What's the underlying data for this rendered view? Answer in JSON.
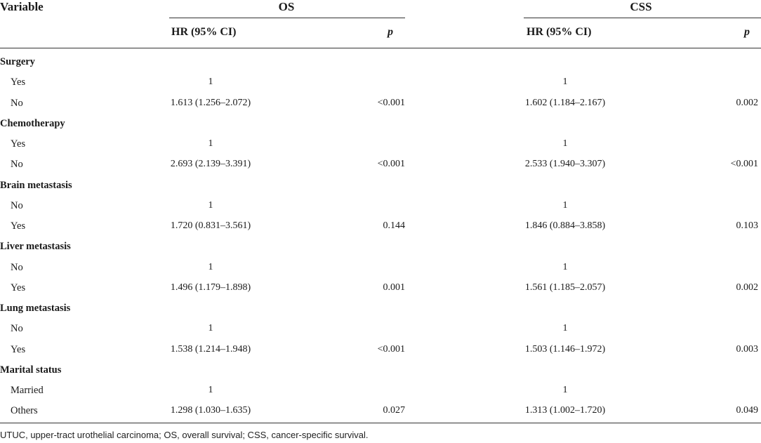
{
  "header": {
    "variable": "Variable",
    "groups": [
      "OS",
      "CSS"
    ],
    "subcolumns": {
      "hr": "HR (95% CI)",
      "p": "p"
    }
  },
  "rows": [
    {
      "label": "Surgery",
      "group": true
    },
    {
      "label": "Yes",
      "os_hr": "1",
      "os_p": "",
      "css_hr": "1",
      "css_p": ""
    },
    {
      "label": "No",
      "os_hr": "1.613 (1.256–2.072)",
      "os_p": "<0.001",
      "css_hr": "1.602 (1.184–2.167)",
      "css_p": "0.002"
    },
    {
      "label": "Chemotherapy",
      "group": true
    },
    {
      "label": "Yes",
      "os_hr": "1",
      "os_p": "",
      "css_hr": "1",
      "css_p": ""
    },
    {
      "label": "No",
      "os_hr": "2.693 (2.139–3.391)",
      "os_p": "<0.001",
      "css_hr": "2.533 (1.940–3.307)",
      "css_p": "<0.001"
    },
    {
      "label": "Brain metastasis",
      "group": true
    },
    {
      "label": "No",
      "os_hr": "1",
      "os_p": "",
      "css_hr": "1",
      "css_p": ""
    },
    {
      "label": "Yes",
      "os_hr": "1.720 (0.831–3.561)",
      "os_p": "0.144",
      "css_hr": "1.846 (0.884–3.858)",
      "css_p": "0.103"
    },
    {
      "label": "Liver metastasis",
      "group": true
    },
    {
      "label": "No",
      "os_hr": "1",
      "os_p": "",
      "css_hr": "1",
      "css_p": ""
    },
    {
      "label": "Yes",
      "os_hr": "1.496 (1.179–1.898)",
      "os_p": "0.001",
      "css_hr": "1.561 (1.185–2.057)",
      "css_p": "0.002"
    },
    {
      "label": "Lung metastasis",
      "group": true
    },
    {
      "label": "No",
      "os_hr": "1",
      "os_p": "",
      "css_hr": "1",
      "css_p": ""
    },
    {
      "label": "Yes",
      "os_hr": "1.538 (1.214–1.948)",
      "os_p": "<0.001",
      "css_hr": "1.503 (1.146–1.972)",
      "css_p": "0.003"
    },
    {
      "label": "Marital status",
      "group": true
    },
    {
      "label": "Married",
      "os_hr": "1",
      "os_p": "",
      "css_hr": "1",
      "css_p": ""
    },
    {
      "label": "Others",
      "os_hr": "1.298 (1.030–1.635)",
      "os_p": "0.027",
      "css_hr": "1.313 (1.002–1.720)",
      "css_p": "0.049"
    }
  ],
  "footnote": "UTUC, upper-tract urothelial carcinoma; OS, overall survival; CSS, cancer-specific survival."
}
